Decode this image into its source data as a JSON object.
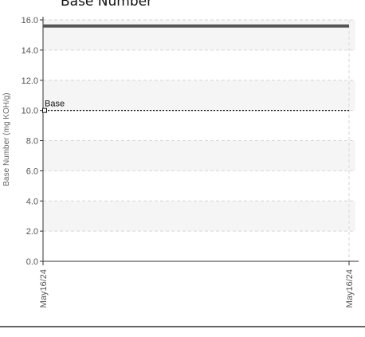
{
  "chart_data": {
    "type": "line",
    "title": "Base Number",
    "xlabel": "",
    "ylabel": "Base Number (mg KOH/g)",
    "ylim": [
      0,
      16
    ],
    "yticks": [
      "0.0",
      "2.0",
      "4.0",
      "6.0",
      "8.0",
      "10.0",
      "12.0",
      "14.0",
      "16.0"
    ],
    "x": [
      "May16/24",
      "May16/24"
    ],
    "series": [
      {
        "values": [
          15.6,
          15.6
        ],
        "color": "#555555",
        "style": "solid"
      }
    ],
    "reference_lines": [
      {
        "label": "Base",
        "value": 10.0,
        "color": "#111111",
        "style": "dotted"
      }
    ],
    "grid": true,
    "band_colors": [
      "#ffffff",
      "#f5f5f5"
    ]
  }
}
